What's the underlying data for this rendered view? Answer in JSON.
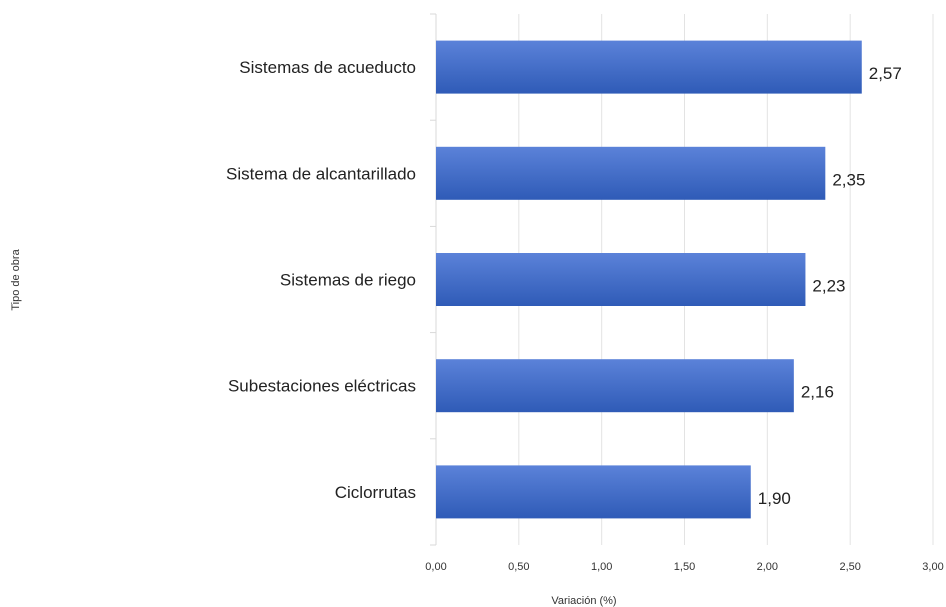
{
  "chart_data": {
    "type": "bar",
    "orientation": "horizontal",
    "categories": [
      "Sistemas de acueducto",
      "Sistema de alcantarillado",
      "Sistemas de riego",
      "Subestaciones eléctricas",
      "Ciclorrutas"
    ],
    "values": [
      2.57,
      2.35,
      2.23,
      2.16,
      1.9
    ],
    "value_labels": [
      "2,57",
      "2,35",
      "2,23",
      "2,16",
      "1,90"
    ],
    "xlabel": "Variación (%)",
    "ylabel": "Tipo de obra",
    "xlim": [
      0,
      3
    ],
    "x_ticks": [
      0,
      0.5,
      1,
      1.5,
      2,
      2.5,
      3
    ],
    "x_tick_labels": [
      "0,00",
      "0,50",
      "1,00",
      "1,50",
      "2,00",
      "2,50",
      "3,00"
    ],
    "grid": "vertical",
    "legend": "none",
    "bar_color_top": "#5b82d9",
    "bar_color_bottom": "#2f5bb7",
    "grid_color": "#e3e3e3"
  }
}
